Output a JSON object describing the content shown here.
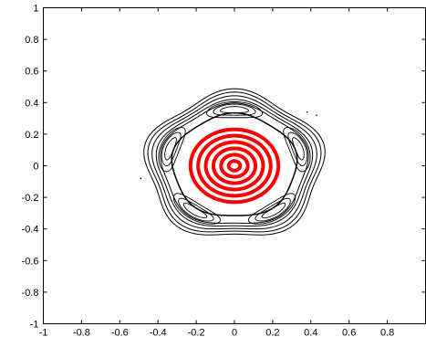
{
  "chart_data": {
    "type": "scatter",
    "title": "",
    "xlabel": "",
    "ylabel": "",
    "xlim": [
      -1,
      1
    ],
    "ylim": [
      -1,
      1
    ],
    "grid": false,
    "legend": "none",
    "x_ticks": [
      -1,
      -0.8,
      -0.6,
      -0.4,
      -0.2,
      0,
      0.2,
      0.4,
      0.6,
      0.8
    ],
    "x_tick_labels": [
      "-1",
      "-0.8",
      "-0.6",
      "-0.4",
      "-0.2",
      "0",
      "0.2",
      "0.4",
      "0.6",
      "0.8"
    ],
    "y_ticks": [
      1,
      0.8,
      0.6,
      0.4,
      0.2,
      0,
      -0.2,
      -0.4,
      -0.6,
      -0.8,
      -1
    ],
    "y_tick_labels": [
      "1",
      "0.8",
      "0.6",
      "0.4",
      "0.2",
      "0",
      "-0.2",
      "-0.4",
      "-0.6",
      "-0.8",
      "-1"
    ],
    "colors": {
      "outer_orbits": "#000000",
      "inner_orbits": "#ff0000",
      "axes": "#000000"
    },
    "outer_orbits": [
      {
        "radius": 0.46,
        "amplitude": 0.06
      },
      {
        "radius": 0.44,
        "amplitude": 0.06
      },
      {
        "radius": 0.42,
        "amplitude": 0.055
      },
      {
        "radius": 0.4,
        "amplitude": 0.05
      },
      {
        "radius": 0.38,
        "amplitude": 0.045
      }
    ],
    "separatrix": {
      "radius": 0.325,
      "amplitude": 0.03
    },
    "island_orbits": [
      {
        "center_angle_deg": 90,
        "center_radius": 0.355,
        "radial_width": 0.1,
        "angular_width_deg": 24
      },
      {
        "center_angle_deg": 90,
        "center_radius": 0.355,
        "radial_width": 0.07,
        "angular_width_deg": 18
      },
      {
        "center_angle_deg": 90,
        "center_radius": 0.355,
        "radial_width": 0.04,
        "angular_width_deg": 12
      },
      {
        "center_angle_deg": 162,
        "center_radius": 0.355,
        "radial_width": 0.1,
        "angular_width_deg": 24
      },
      {
        "center_angle_deg": 162,
        "center_radius": 0.355,
        "radial_width": 0.07,
        "angular_width_deg": 18
      },
      {
        "center_angle_deg": 162,
        "center_radius": 0.355,
        "radial_width": 0.04,
        "angular_width_deg": 12
      },
      {
        "center_angle_deg": 234,
        "center_radius": 0.355,
        "radial_width": 0.1,
        "angular_width_deg": 24
      },
      {
        "center_angle_deg": 234,
        "center_radius": 0.355,
        "radial_width": 0.07,
        "angular_width_deg": 18
      },
      {
        "center_angle_deg": 234,
        "center_radius": 0.355,
        "radial_width": 0.04,
        "angular_width_deg": 12
      },
      {
        "center_angle_deg": 306,
        "center_radius": 0.355,
        "radial_width": 0.1,
        "angular_width_deg": 24
      },
      {
        "center_angle_deg": 306,
        "center_radius": 0.355,
        "radial_width": 0.07,
        "angular_width_deg": 18
      },
      {
        "center_angle_deg": 306,
        "center_radius": 0.355,
        "radial_width": 0.04,
        "angular_width_deg": 12
      },
      {
        "center_angle_deg": 18,
        "center_radius": 0.355,
        "radial_width": 0.1,
        "angular_width_deg": 24
      },
      {
        "center_angle_deg": 18,
        "center_radius": 0.355,
        "radial_width": 0.07,
        "angular_width_deg": 18
      },
      {
        "center_angle_deg": 18,
        "center_radius": 0.355,
        "radial_width": 0.04,
        "angular_width_deg": 12
      }
    ],
    "inner_orbits": [
      {
        "radius": 0.03,
        "amplitude": 0.0
      },
      {
        "radius": 0.07,
        "amplitude": 0.0
      },
      {
        "radius": 0.11,
        "amplitude": 0.0
      },
      {
        "radius": 0.15,
        "amplitude": 0.0
      },
      {
        "radius": 0.19,
        "amplitude": 0.0
      },
      {
        "radius": 0.23,
        "amplitude": 0.0
      }
    ],
    "scattered_points": [
      {
        "x": 0.43,
        "y": 0.32
      },
      {
        "x": 0.38,
        "y": 0.34
      },
      {
        "x": -0.49,
        "y": -0.08
      }
    ]
  }
}
